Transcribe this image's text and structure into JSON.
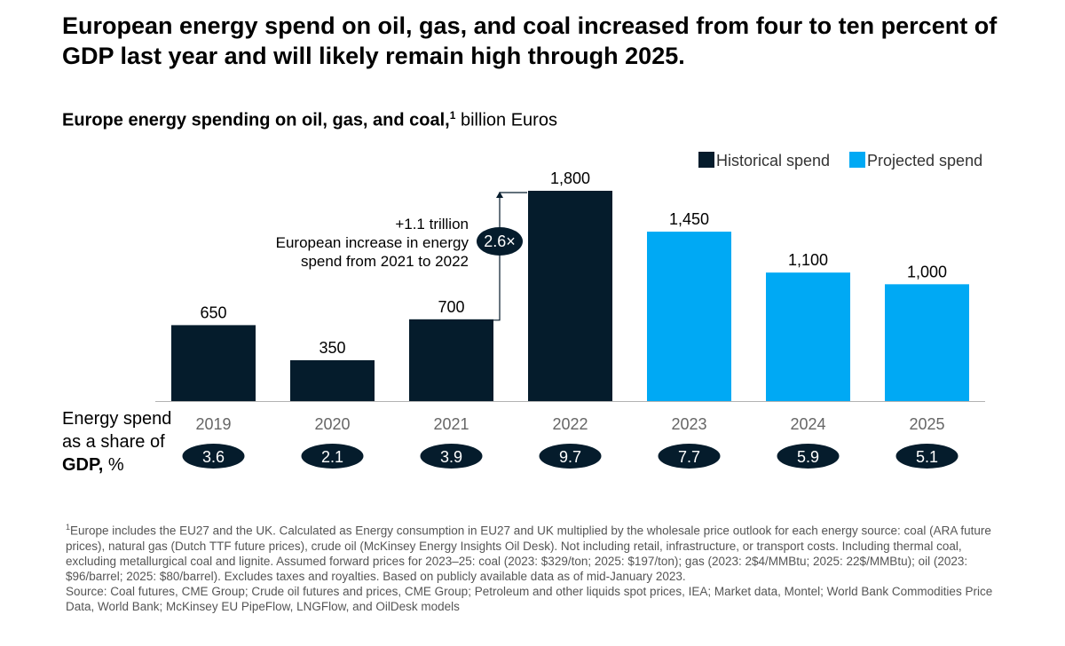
{
  "headline": "European energy spend on oil, gas, and coal increased from four to ten percent of GDP last year and will likely remain high through 2025.",
  "subtitle": {
    "bold": "Europe energy spending on oil, gas, and coal,",
    "sup": "1",
    "unit": " billion Euros"
  },
  "colors": {
    "historical": "#051c2c",
    "projected": "#00a9f4",
    "axis": "#b3b3b3",
    "year_text": "#666666",
    "pill": "#051c2c"
  },
  "chart_data": {
    "type": "bar",
    "title": "Europe energy spending on oil, gas, and coal, billion Euros",
    "xlabel": "",
    "ylabel": "billion Euros",
    "ylim": [
      0,
      1800
    ],
    "categories": [
      "2019",
      "2020",
      "2021",
      "2022",
      "2023",
      "2024",
      "2025"
    ],
    "values": [
      650,
      350,
      700,
      1800,
      1450,
      1100,
      1000
    ],
    "value_labels": [
      "650",
      "350",
      "700",
      "1,800",
      "1,450",
      "1,100",
      "1,000"
    ],
    "series_type": [
      "historical",
      "historical",
      "historical",
      "historical",
      "projected",
      "projected",
      "projected"
    ],
    "legend": [
      {
        "key": "historical",
        "label": "Historical spend"
      },
      {
        "key": "projected",
        "label": "Projected spend"
      }
    ],
    "gdp_share_label": [
      "Energy spend as a share of",
      "GDP,",
      " %"
    ],
    "gdp_share": [
      "3.6",
      "2.1",
      "3.9",
      "9.7",
      "7.7",
      "5.9",
      "5.1"
    ],
    "annotation": {
      "lines": [
        "+1.1 trillion",
        "European increase in energy",
        "spend from 2021 to 2022"
      ],
      "badge": "2.6×",
      "from": "2021",
      "to": "2022"
    },
    "grid": false
  },
  "footnotes": {
    "note_marker": "1",
    "note": "Europe includes the EU27 and the UK. Calculated as Energy consumption in EU27 and UK multiplied by the wholesale price outlook for each energy source: coal (ARA future prices), natural gas (Dutch TTF future prices), crude oil (McKinsey Energy Insights Oil Desk). Not including retail, infrastructure, or transport costs. Including thermal coal, excluding metallurgical coal and lignite. Assumed forward prices for 2023–25: coal (2023: $329/ton; 2025: $197/ton); gas (2023: 2$4/MMBtu; 2025: 22$/MMBtu); oil (2023: $96/barrel; 2025: $80/barrel). Excludes taxes and royalties. Based on publicly available data as of mid-January 2023.",
    "source": "Source: Coal futures, CME Group; Crude oil futures and prices, CME Group; Petroleum and other liquids spot prices, IEA; Market data, Montel; World Bank Commodities Price Data, World Bank; McKinsey EU PipeFlow, LNGFlow, and OilDesk models"
  }
}
